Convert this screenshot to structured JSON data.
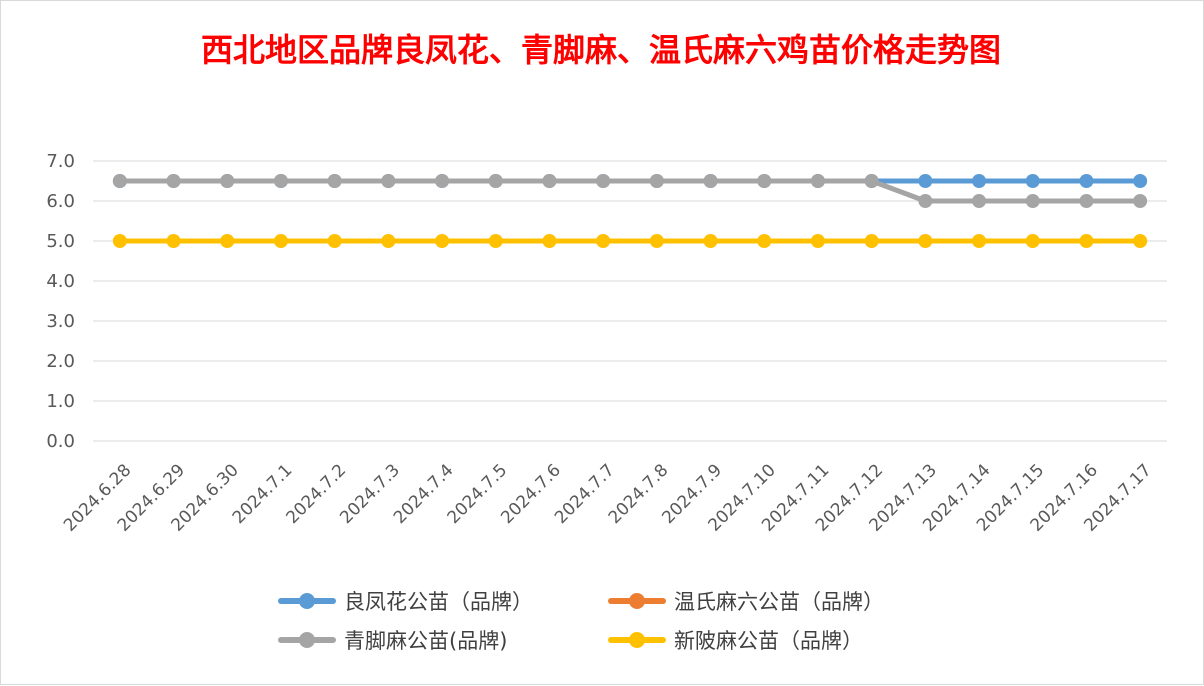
{
  "chart_data": {
    "type": "line",
    "title": "西北地区品牌良凤花、青脚麻、温氏麻六鸡苗价格走势图",
    "xlabel": "",
    "ylabel": "",
    "ylim": [
      0,
      7
    ],
    "y_ticks": [
      "0.0",
      "1.0",
      "2.0",
      "3.0",
      "4.0",
      "5.0",
      "6.0",
      "7.0"
    ],
    "grid": true,
    "legend_position": "bottom",
    "categories": [
      "2024.6.28",
      "2024.6.29",
      "2024.6.30",
      "2024.7.1",
      "2024.7.2",
      "2024.7.3",
      "2024.7.4",
      "2024.7.5",
      "2024.7.6",
      "2024.7.7",
      "2024.7.8",
      "2024.7.9",
      "2024.7.10",
      "2024.7.11",
      "2024.7.12",
      "2024.7.13",
      "2024.7.14",
      "2024.7.15",
      "2024.7.16",
      "2024.7.17"
    ],
    "series": [
      {
        "name": "良凤花公苗（品牌）",
        "color": "#5b9bd5",
        "values": [
          6.5,
          6.5,
          6.5,
          6.5,
          6.5,
          6.5,
          6.5,
          6.5,
          6.5,
          6.5,
          6.5,
          6.5,
          6.5,
          6.5,
          6.5,
          6.5,
          6.5,
          6.5,
          6.5,
          6.5
        ]
      },
      {
        "name": "温氏麻六公苗（品牌）",
        "color": "#ed7d31",
        "values": [
          null,
          null,
          null,
          null,
          null,
          null,
          null,
          null,
          null,
          null,
          null,
          null,
          null,
          null,
          null,
          null,
          null,
          null,
          null,
          null
        ]
      },
      {
        "name": "青脚麻公苗(品牌)",
        "color": "#a5a5a5",
        "values": [
          6.5,
          6.5,
          6.5,
          6.5,
          6.5,
          6.5,
          6.5,
          6.5,
          6.5,
          6.5,
          6.5,
          6.5,
          6.5,
          6.5,
          6.5,
          6.0,
          6.0,
          6.0,
          6.0,
          6.0
        ]
      },
      {
        "name": "新陂麻公苗（品牌）",
        "color": "#ffc000",
        "values": [
          5.0,
          5.0,
          5.0,
          5.0,
          5.0,
          5.0,
          5.0,
          5.0,
          5.0,
          5.0,
          5.0,
          5.0,
          5.0,
          5.0,
          5.0,
          5.0,
          5.0,
          5.0,
          5.0,
          5.0
        ]
      }
    ]
  }
}
